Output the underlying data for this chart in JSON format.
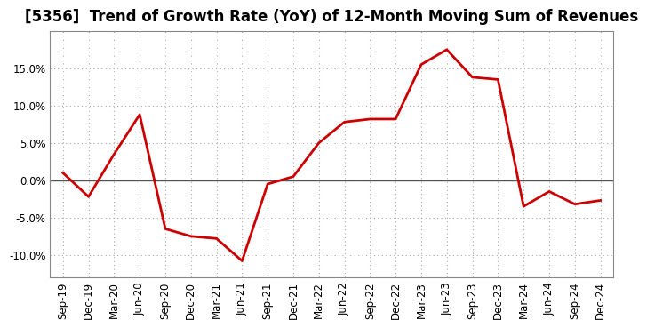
{
  "title": "[5356]  Trend of Growth Rate (YoY) of 12-Month Moving Sum of Revenues",
  "x_labels": [
    "Sep-19",
    "Dec-19",
    "Mar-20",
    "Jun-20",
    "Sep-20",
    "Dec-20",
    "Mar-21",
    "Jun-21",
    "Sep-21",
    "Dec-21",
    "Mar-22",
    "Jun-22",
    "Sep-22",
    "Dec-22",
    "Mar-23",
    "Jun-23",
    "Sep-23",
    "Dec-23",
    "Mar-24",
    "Jun-24",
    "Sep-24",
    "Dec-24"
  ],
  "y_values": [
    0.01,
    -0.022,
    0.035,
    0.088,
    -0.065,
    -0.075,
    -0.078,
    -0.108,
    -0.005,
    0.005,
    0.05,
    0.078,
    0.082,
    0.082,
    0.155,
    0.175,
    0.138,
    0.135,
    -0.035,
    -0.015,
    -0.032,
    -0.027
  ],
  "line_color": "#cc0000",
  "line_width": 2.0,
  "ylim": [
    -0.13,
    0.2
  ],
  "yticks": [
    -0.1,
    -0.05,
    0.0,
    0.05,
    0.1,
    0.15
  ],
  "background_color": "#ffffff",
  "grid_color": "#aaaaaa",
  "zero_line_color": "#555555",
  "title_fontsize": 12,
  "tick_fontsize": 8.5
}
